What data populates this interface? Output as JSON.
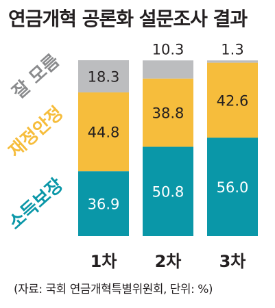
{
  "title": "연금개혁 공론화 설문조사 결과",
  "source": "(자료: 국회 연금개혁특별위원회, 단위: %)",
  "chart_data": {
    "type": "bar",
    "stacked": true,
    "categories": [
      "1차",
      "2차",
      "3차"
    ],
    "series": [
      {
        "name": "소득보장",
        "values": [
          36.9,
          50.8,
          56.0
        ],
        "labels": [
          "36.9",
          "50.8",
          "56.0"
        ],
        "color": "#0a97a8",
        "label_color": "#ffffff",
        "label_pos": "inside"
      },
      {
        "name": "재정안정",
        "values": [
          44.8,
          38.8,
          42.6
        ],
        "labels": [
          "44.8",
          "38.8",
          "42.6"
        ],
        "color": "#f6bd3c",
        "label_color": "#231f20",
        "label_pos": "inside"
      },
      {
        "name": "잘 모름",
        "values": [
          18.3,
          10.3,
          1.3
        ],
        "labels": [
          "18.3",
          "10.3",
          "1.3"
        ],
        "color": "#bcbdbf",
        "label_color": "#231f20",
        "label_pos": [
          "inside",
          "above",
          "above"
        ]
      }
    ],
    "ylim": [
      0,
      100
    ],
    "legend_placement": "left, vertical labels beside each segment",
    "grid": false
  }
}
